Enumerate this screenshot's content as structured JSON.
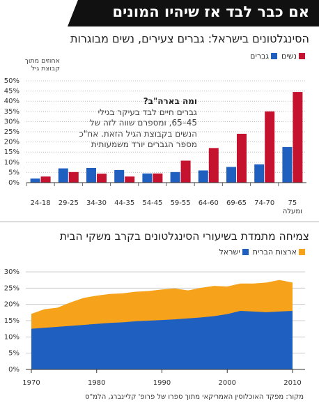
{
  "header": {
    "title": "אם כבר לבד אז שיהיו המונים"
  },
  "chart_data": [
    {
      "type": "bar",
      "title": "הסינגלטונים בישראל: גברים צעירים, נשים מבוגרות",
      "y_label": "אחוזים מתוך קבוצת גיל",
      "categories": [
        "24-18",
        "29-25",
        "34-30",
        "44-35",
        "54-45",
        "59-55",
        "64-60",
        "69-65",
        "74-70",
        "75 ומעלה"
      ],
      "series": [
        {
          "name": "נשים",
          "color": "#c4122f",
          "values": [
            3,
            5.2,
            4.4,
            3,
            4.5,
            10.8,
            17,
            24,
            35,
            44.5
          ]
        },
        {
          "name": "גברים",
          "color": "#1f5fbf",
          "values": [
            2,
            7,
            7.2,
            6.2,
            4.5,
            5.2,
            6,
            7.7,
            9,
            17.5
          ]
        }
      ],
      "ylim": [
        0,
        50
      ],
      "yticks": [
        {
          "value": 0,
          "label": "0%"
        },
        {
          "value": 5,
          "label": "5%"
        },
        {
          "value": 10,
          "label": "10%"
        },
        {
          "value": 15,
          "label": "15%"
        },
        {
          "value": 20,
          "label": "20%"
        },
        {
          "value": 25,
          "label": "25%"
        },
        {
          "value": 30,
          "label": "30%"
        },
        {
          "value": 35,
          "label": "35%"
        },
        {
          "value": 40,
          "label": "40%"
        },
        {
          "value": 45,
          "label": "45%"
        },
        {
          "value": 50,
          "label": "50%"
        }
      ],
      "grid": true,
      "annotation": {
        "title": "ומה בארה\"ב?",
        "lines": [
          "גברים חיים לבד בעיקר בגילי",
          "45–65, ומספרם שווה לזה של",
          "הנשים בקבוצת הגיל הזאת. אח\"כ",
          "מספר הגברים יורד משמעותית"
        ]
      }
    },
    {
      "type": "area",
      "title": "צמיחה מתמדת בשיעורי הסינגלטונים בקרב משקי הבית",
      "x": [
        1970,
        1972,
        1974,
        1976,
        1978,
        1980,
        1982,
        1984,
        1986,
        1988,
        1990,
        1992,
        1994,
        1996,
        1998,
        2000,
        2002,
        2004,
        2006,
        2008,
        2010
      ],
      "series": [
        {
          "name": "ארצות הברית",
          "color": "#f7a21b",
          "values": [
            17.1,
            18.5,
            19,
            20.6,
            22,
            22.7,
            23.2,
            23.4,
            23.9,
            24.1,
            24.6,
            24.9,
            24.3,
            25.1,
            25.7,
            25.5,
            26.4,
            26.4,
            26.7,
            27.5,
            26.7
          ]
        },
        {
          "name": "ישראל",
          "color": "#1f5fbf",
          "values": [
            12.5,
            12.8,
            13.1,
            13.4,
            13.7,
            14,
            14.3,
            14.5,
            14.8,
            15,
            15.2,
            15.4,
            15.7,
            16,
            16.4,
            17,
            18,
            17.8,
            17.6,
            17.8,
            18
          ]
        }
      ],
      "xlim": [
        1970,
        2010
      ],
      "xticks": [
        1970,
        1980,
        1990,
        2000,
        2010
      ],
      "ylim": [
        0,
        30
      ],
      "yticks": [
        {
          "value": 0,
          "label": "0%"
        },
        {
          "value": 5,
          "label": "5%"
        },
        {
          "value": 10,
          "label": "10%"
        },
        {
          "value": 15,
          "label": "15%"
        },
        {
          "value": 20,
          "label": "20%"
        },
        {
          "value": 25,
          "label": "25%"
        },
        {
          "value": 30,
          "label": "30%"
        }
      ],
      "grid": true
    }
  ],
  "source": "מקור: מפקד האוכלוסין האמריקאי מתוך ספרו של פרופ' קליינברג, הלמ\"ס"
}
